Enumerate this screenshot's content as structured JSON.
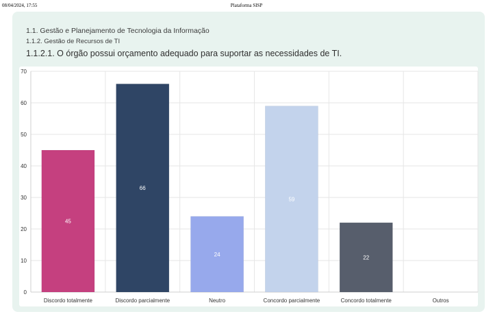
{
  "print_header": {
    "datetime": "08/04/2024, 17:55",
    "title": "Plataforma SISP"
  },
  "breadcrumb": {
    "level1": "1.1. Gestão e Planejamento de Tecnologia da Informação",
    "level2": "1.1.2. Gestão de Recursos de TI",
    "question": "1.1.2.1. O órgão possui orçamento adequado para suportar as necessidades de TI."
  },
  "chart_data": {
    "type": "bar",
    "categories": [
      "Discordo totalmente",
      "Discordo parcialmente",
      "Neutro",
      "Concordo parcialmente",
      "Concordo totalmente",
      "Outros"
    ],
    "values": [
      45,
      66,
      24,
      59,
      22,
      0
    ],
    "data_labels": [
      "45",
      "66",
      "24",
      "59",
      "22",
      ""
    ],
    "colors": [
      "#c5407f",
      "#2f4565",
      "#97a9ec",
      "#c3d3ec",
      "#575e6c",
      "#cccccc"
    ],
    "ylim": [
      0,
      70
    ],
    "yticks": [
      0,
      10,
      20,
      30,
      40,
      50,
      60,
      70
    ],
    "grid": true
  }
}
